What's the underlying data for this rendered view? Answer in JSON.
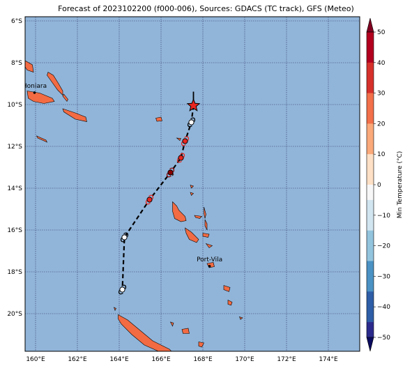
{
  "title": "Forecast of 2023102200 (f000-006), Sources: GDACS (TC track), GFS (Meteo)",
  "colors": {
    "ocean": "#91b5d9",
    "land": "#f26b43",
    "coast": "#000000",
    "grid": "#333366",
    "track": "#000000",
    "current_marker": "#e8261f"
  },
  "lat_ticks": [
    "6°S",
    "8°S",
    "10°S",
    "12°S",
    "14°S",
    "16°S",
    "18°S",
    "20°S"
  ],
  "lon_ticks": [
    "160°E",
    "162°E",
    "164°E",
    "166°E",
    "168°E",
    "170°E",
    "172°E",
    "174°E"
  ],
  "cities": [
    {
      "name": "Honiara",
      "lon": 159.95,
      "lat": -9.43
    },
    {
      "name": "Port-Vila",
      "lon": 168.32,
      "lat": -17.73
    }
  ],
  "track": [
    {
      "lon": 167.55,
      "lat": -10.05,
      "type": "current",
      "color": "#e8261f"
    },
    {
      "lon": 167.45,
      "lat": -10.85,
      "type": "forecast",
      "color": "#ffffff"
    },
    {
      "lon": 167.15,
      "lat": -11.75,
      "type": "forecast",
      "color": "#e8261f"
    },
    {
      "lon": 166.95,
      "lat": -12.55,
      "type": "forecast",
      "color": "#e8261f"
    },
    {
      "lon": 166.45,
      "lat": -13.25,
      "type": "forecast",
      "color": "#8b0000"
    },
    {
      "lon": 165.45,
      "lat": -14.55,
      "type": "forecast",
      "color": "#e8261f"
    },
    {
      "lon": 164.25,
      "lat": -16.35,
      "type": "forecast",
      "color": "#ffffff"
    },
    {
      "lon": 164.15,
      "lat": -18.85,
      "type": "forecast",
      "color": "#ffffff"
    }
  ],
  "colorbar": {
    "label": "Min Temperature (°C)",
    "ticks": [
      "50",
      "40",
      "30",
      "20",
      "10",
      "0",
      "−10",
      "−20",
      "−30",
      "−40",
      "−50"
    ],
    "colors": [
      "#800020",
      "#b3001f",
      "#d6302b",
      "#f2704a",
      "#fba97a",
      "#fde0c5",
      "#f7f7f7",
      "#d1e5f0",
      "#93c4de",
      "#4b92c4",
      "#2f5ea8",
      "#2b2a8c",
      "#0a0a5e"
    ]
  }
}
